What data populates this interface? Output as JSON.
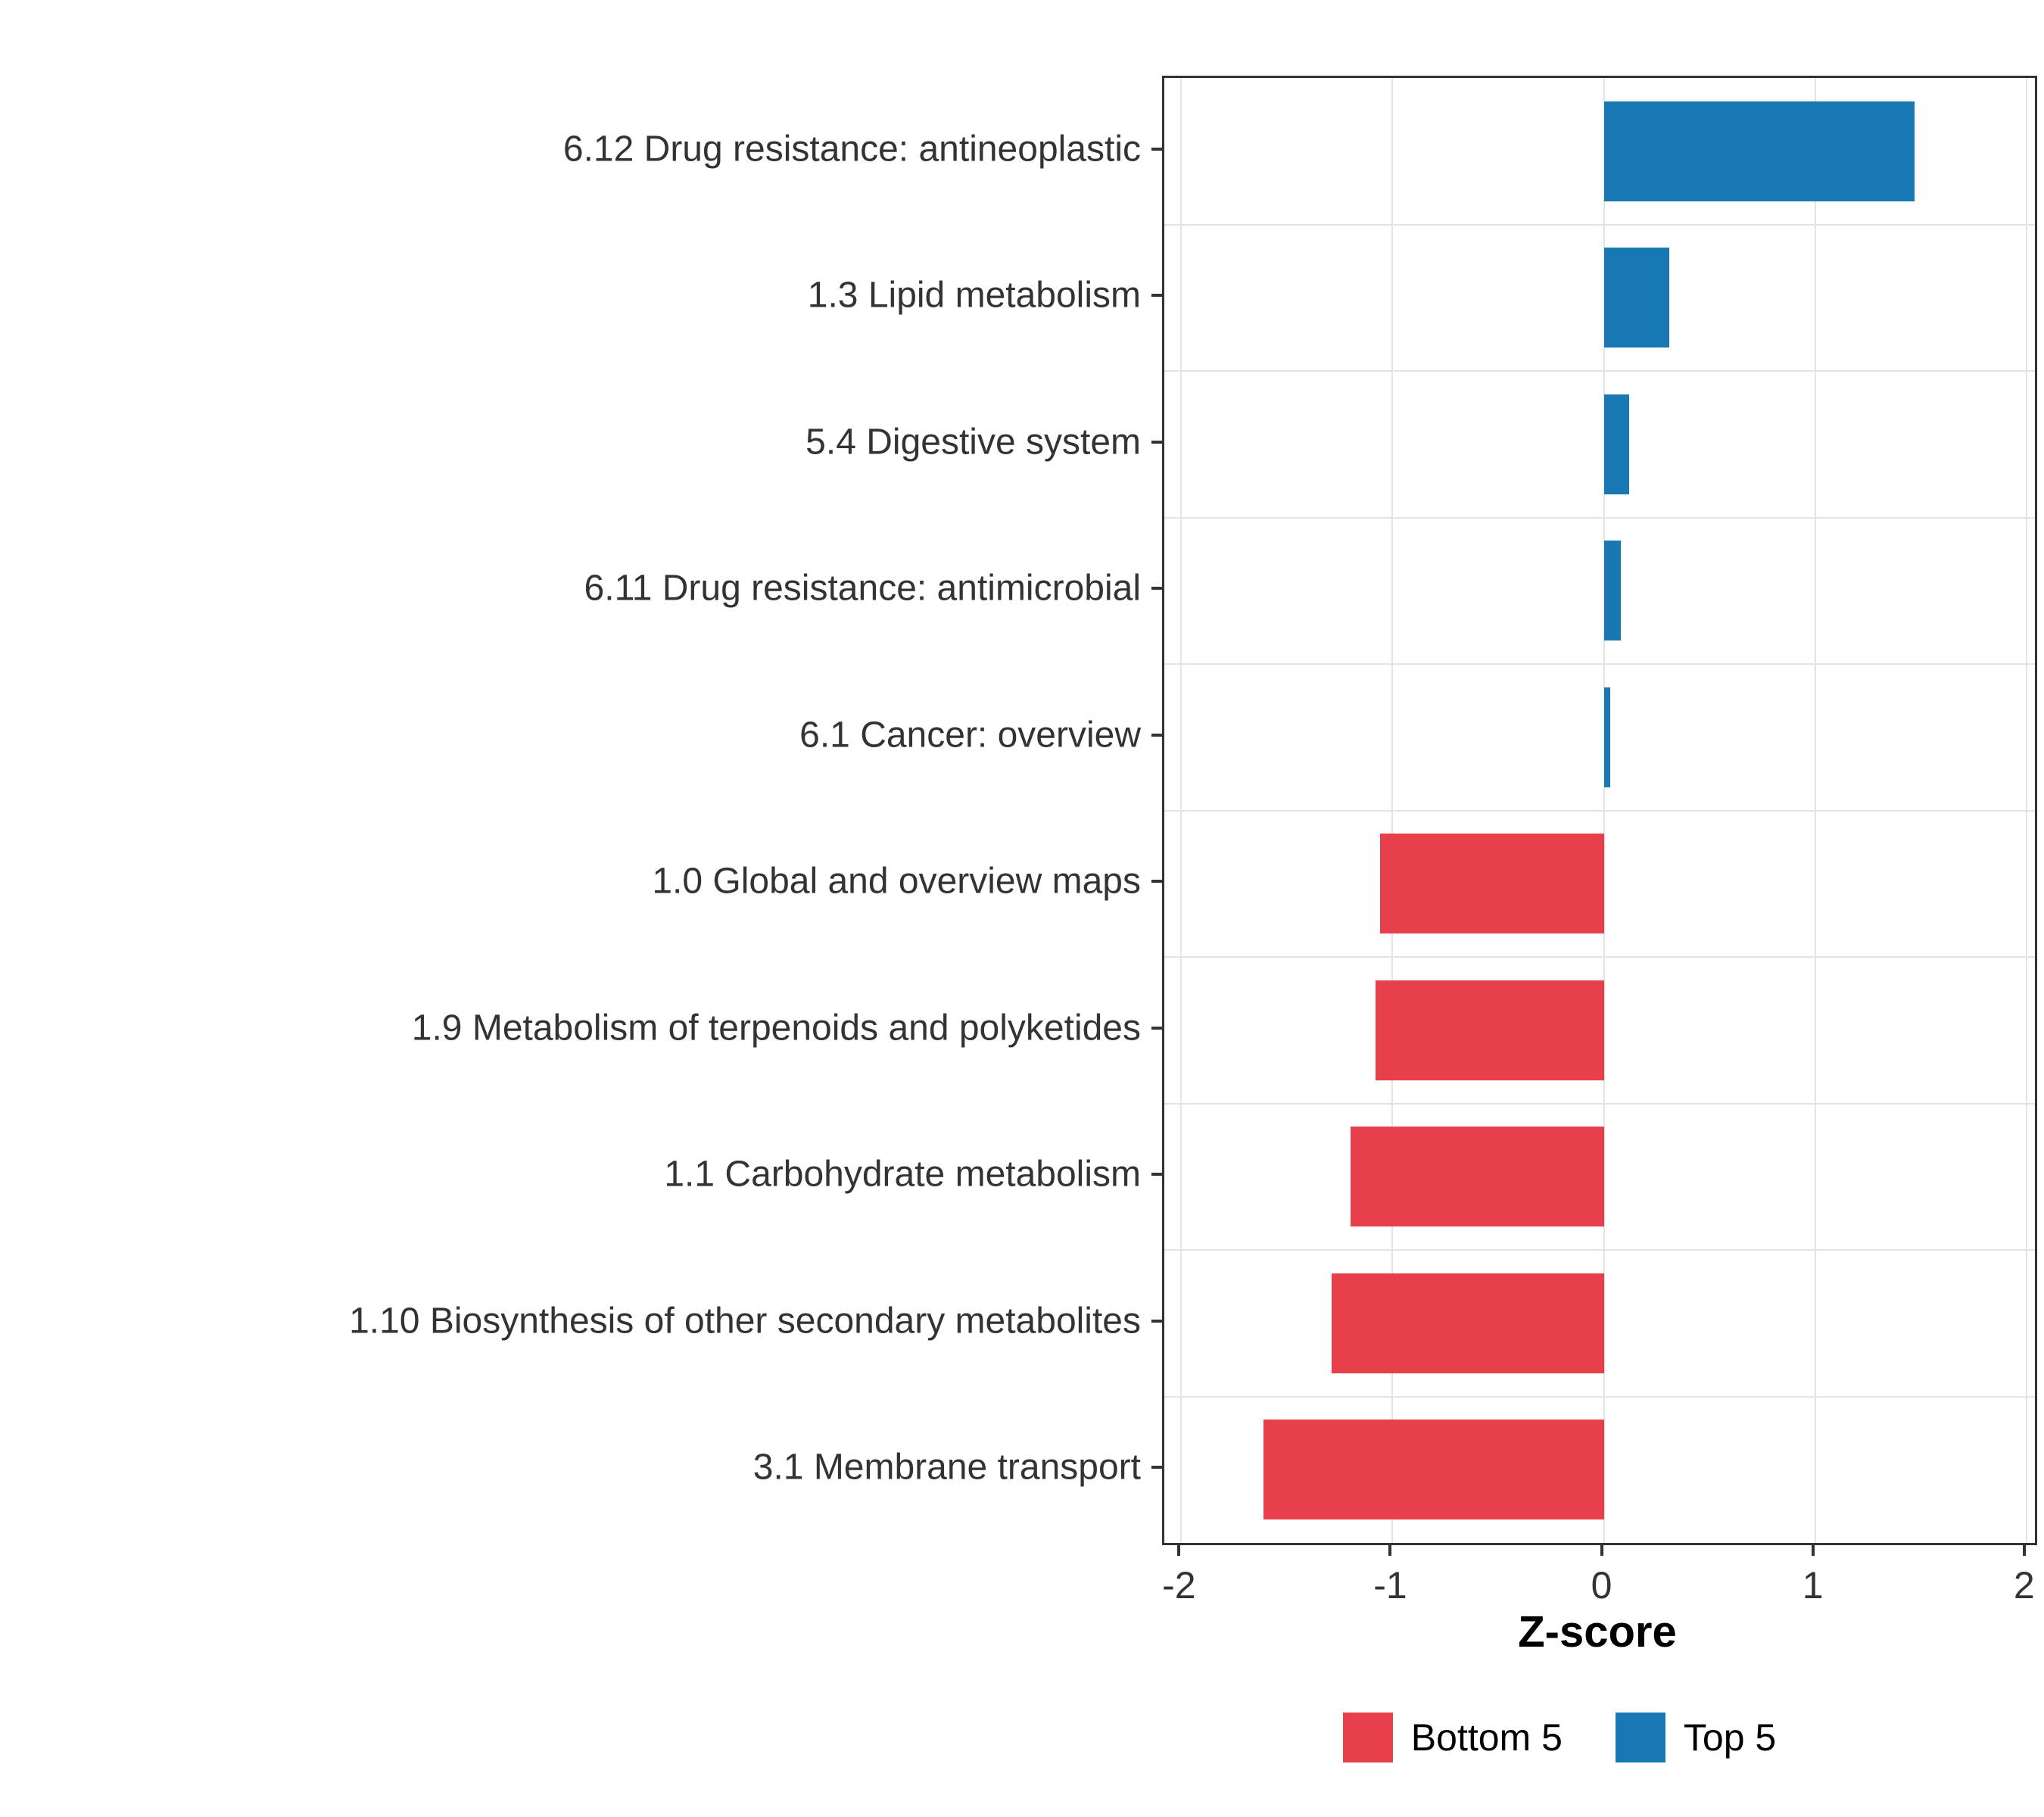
{
  "chart_data": {
    "type": "bar",
    "orientation": "horizontal",
    "title": "",
    "xlabel": "Z-score",
    "ylabel": "",
    "xlim": [
      -2.08,
      2.04
    ],
    "x_ticks": [
      -2,
      -1,
      0,
      1,
      2
    ],
    "grid": true,
    "legend_position": "bottom",
    "bars": [
      {
        "category": "6.12 Drug resistance: antineoplastic",
        "value": 1.47,
        "group": "Top 5"
      },
      {
        "category": "1.3 Lipid metabolism",
        "value": 0.31,
        "group": "Top 5"
      },
      {
        "category": "5.4 Digestive system",
        "value": 0.12,
        "group": "Top 5"
      },
      {
        "category": "6.11 Drug resistance: antimicrobial",
        "value": 0.08,
        "group": "Top 5"
      },
      {
        "category": "6.1 Cancer: overview",
        "value": 0.03,
        "group": "Top 5"
      },
      {
        "category": "1.0 Global and overview maps",
        "value": -1.06,
        "group": "Bottom 5"
      },
      {
        "category": "1.9 Metabolism of terpenoids and polyketides",
        "value": -1.08,
        "group": "Bottom 5"
      },
      {
        "category": "1.1 Carbohydrate metabolism",
        "value": -1.2,
        "group": "Bottom 5"
      },
      {
        "category": "1.10 Biosynthesis of other secondary metabolites",
        "value": -1.29,
        "group": "Bottom 5"
      },
      {
        "category": "3.1 Membrane transport",
        "value": -1.61,
        "group": "Bottom 5"
      }
    ],
    "colors": {
      "Bottom 5": "#E8404B",
      "Top 5": "#1878B4"
    },
    "legend": [
      {
        "label": "Bottom 5",
        "color": "#E8404B"
      },
      {
        "label": "Top 5",
        "color": "#1878B4"
      }
    ]
  }
}
